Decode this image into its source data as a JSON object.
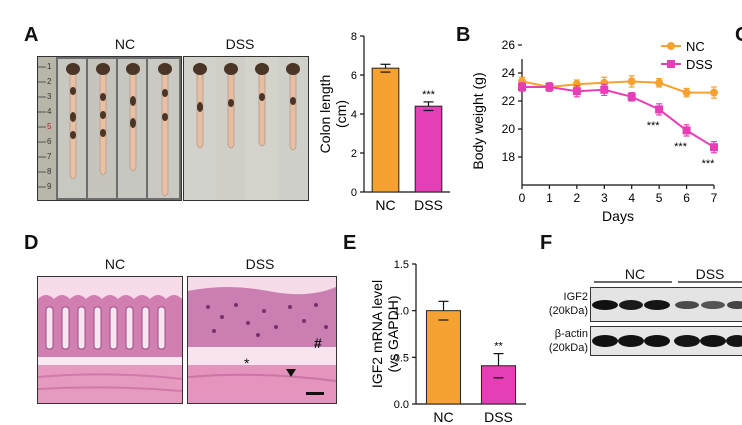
{
  "panels": {
    "A": {
      "letter": "A",
      "group_nc": "NC",
      "group_dss": "DSS",
      "ruler_ticks": [
        "1",
        "2",
        "3",
        "4",
        "5",
        "6",
        "7",
        "8",
        "9"
      ]
    },
    "B": {
      "letter": "B"
    },
    "D": {
      "letter": "D",
      "group_nc": "NC",
      "group_dss": "DSS",
      "markers": {
        "hash": "#",
        "star": "*"
      }
    },
    "E": {
      "letter": "E"
    },
    "F": {
      "letter": "F",
      "group_nc": "NC",
      "group_dss": "DSS",
      "row1": "IGF2",
      "row1_kda": "(20kDa)",
      "row2": "β-actin",
      "row2_kda": "(20kDa)"
    },
    "C_partial": {
      "letter": "C"
    }
  },
  "colors": {
    "nc": "#F5A233",
    "dss": "#E43FB7",
    "he_bg": "#f0c3d8",
    "he_dark": "#a34f8f"
  },
  "chart_data": [
    {
      "id": "colon-length",
      "type": "bar",
      "categories": [
        "NC",
        "DSS"
      ],
      "values": [
        6.35,
        4.4
      ],
      "errors": [
        0.2,
        0.22
      ],
      "ylabel": "Colon length",
      "ylabel2": "(cm)",
      "ylim": [
        0,
        8
      ],
      "yticks": [
        "0",
        "2",
        "4",
        "6",
        "8"
      ],
      "significance": [
        "",
        "***"
      ]
    },
    {
      "id": "body-weight",
      "type": "line",
      "xlabel": "Days",
      "ylabel": "Body weight (g)",
      "xlim": [
        0,
        7
      ],
      "ylim": [
        16,
        26
      ],
      "xticks": [
        "0",
        "1",
        "2",
        "3",
        "4",
        "5",
        "6",
        "7"
      ],
      "yticks": [
        "18",
        "20",
        "22",
        "24",
        "26"
      ],
      "x": [
        0,
        1,
        2,
        3,
        4,
        5,
        6,
        7
      ],
      "series": [
        {
          "name": "NC",
          "color": "#F5A233",
          "marker": "circle",
          "values": [
            23.4,
            23.0,
            23.2,
            23.3,
            23.4,
            23.3,
            22.6,
            22.6
          ],
          "errors": [
            0.3,
            0.3,
            0.3,
            0.4,
            0.4,
            0.3,
            0.3,
            0.4
          ]
        },
        {
          "name": "DSS",
          "color": "#E43FB7",
          "marker": "square",
          "values": [
            23.0,
            23.0,
            22.7,
            22.8,
            22.3,
            21.4,
            19.9,
            18.7
          ],
          "errors": [
            0.3,
            0.3,
            0.4,
            0.4,
            0.3,
            0.4,
            0.4,
            0.4
          ]
        }
      ],
      "annotations": [
        {
          "x": 5,
          "text": "***"
        },
        {
          "x": 6,
          "text": "***"
        },
        {
          "x": 7,
          "text": "***"
        }
      ],
      "legend": "top-right"
    },
    {
      "id": "igf2-mrna",
      "type": "bar",
      "categories": [
        "NC",
        "DSS"
      ],
      "values": [
        1.0,
        0.41
      ],
      "errors": [
        0.1,
        0.13
      ],
      "ylabel": "IGF2 mRNA level",
      "ylabel2": "(vs GAPDH)",
      "ylim": [
        0,
        1.5
      ],
      "yticks": [
        "0.0",
        "0.5",
        "1.0",
        "1.5"
      ],
      "significance": [
        "",
        "**"
      ]
    }
  ]
}
